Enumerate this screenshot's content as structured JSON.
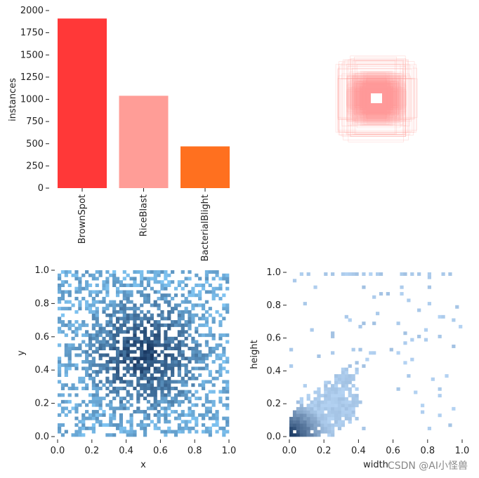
{
  "chart_data": [
    {
      "type": "bar",
      "categories": [
        "BrownSpot",
        "RiceBlast",
        "BacterialBlight"
      ],
      "values": [
        1910,
        1040,
        470
      ],
      "colors": [
        "#ff3838",
        "#ff9d97",
        "#ff701f"
      ],
      "ylabel": "instances",
      "ylim": [
        0,
        2000
      ],
      "yticks": [
        "0",
        "250",
        "500",
        "750",
        "1000",
        "1250",
        "1500",
        "1750",
        "2000"
      ],
      "ytick_values": [
        0,
        250,
        500,
        750,
        1000,
        1250,
        1500,
        1750,
        2000
      ]
    },
    {
      "type": "heatmap",
      "description_kind": "box-overlay",
      "color": "#ff9d97"
    },
    {
      "type": "heatmap",
      "xlabel": "x",
      "ylabel": "y",
      "xlim": [
        0,
        1
      ],
      "ylim": [
        0,
        1
      ],
      "xticks": [
        "0.0",
        "0.2",
        "0.4",
        "0.6",
        "0.8",
        "1.0"
      ],
      "yticks": [
        "0.0",
        "0.2",
        "0.4",
        "0.6",
        "0.8",
        "1.0"
      ],
      "tick_values": [
        0,
        0.2,
        0.4,
        0.6,
        0.8,
        1.0
      ],
      "bins": 50,
      "center": [
        0.5,
        0.5
      ],
      "color_light": "#7fc4f2",
      "color_dark": "#1a3a64"
    },
    {
      "type": "heatmap",
      "xlabel": "width",
      "ylabel": "height",
      "xlim": [
        0,
        1
      ],
      "ylim": [
        0,
        1
      ],
      "xticks": [
        "0.0",
        "0.2",
        "0.4",
        "0.6",
        "0.8",
        "1.0"
      ],
      "yticks": [
        "0.0",
        "0.2",
        "0.4",
        "0.6",
        "0.8",
        "1.0"
      ],
      "tick_values": [
        0,
        0.2,
        0.4,
        0.6,
        0.8,
        1.0
      ],
      "bins": 50,
      "color_light": "#b4d3f3",
      "color_dark": "#1a3a64"
    }
  ],
  "watermark": "CSDN @AI小怪兽"
}
